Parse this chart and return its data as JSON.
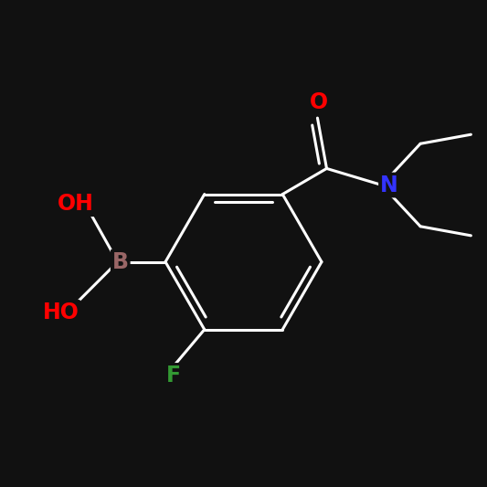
{
  "background_color": "#111111",
  "bond_color": "#ffffff",
  "bond_width": 2.2,
  "atom_colors": {
    "B": "#996666",
    "O": "#ff0000",
    "F": "#339933",
    "N": "#3333ff",
    "C": "#ffffff"
  },
  "font_size": 16
}
